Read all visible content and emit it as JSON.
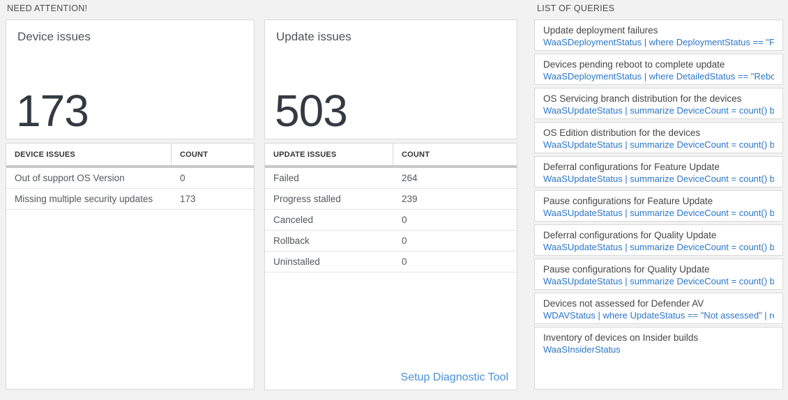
{
  "need_attention": {
    "section_label": "NEED ATTENTION!",
    "device_card": {
      "title": "Device issues",
      "count": "173",
      "table": {
        "columns": [
          "DEVICE ISSUES",
          "COUNT"
        ],
        "rows": [
          [
            "Out of support OS Version",
            "0"
          ],
          [
            "Missing multiple security updates",
            "173"
          ]
        ]
      }
    },
    "update_card": {
      "title": "Update issues",
      "count": "503",
      "table": {
        "columns": [
          "UPDATE ISSUES",
          "COUNT"
        ],
        "rows": [
          [
            "Failed",
            "264"
          ],
          [
            "Progress stalled",
            "239"
          ],
          [
            "Canceled",
            "0"
          ],
          [
            "Rollback",
            "0"
          ],
          [
            "Uninstalled",
            "0"
          ]
        ]
      },
      "footer_link": "Setup Diagnostic Tool"
    }
  },
  "queries": {
    "section_label": "LIST OF QUERIES",
    "items": [
      {
        "title": "Update deployment failures",
        "query": "WaaSDeploymentStatus | where DeploymentStatus == \"Failed\" |..."
      },
      {
        "title": "Devices pending reboot to complete update",
        "query": "WaaSDeploymentStatus | where DetailedStatus == \"Reboot pend..."
      },
      {
        "title": "OS Servicing branch distribution for the devices",
        "query": "WaaSUpdateStatus | summarize DeviceCount = count() by OSSer..."
      },
      {
        "title": "OS Edition distribution for the devices",
        "query": "WaaSUpdateStatus | summarize DeviceCount = count() by OSEdit..."
      },
      {
        "title": "Deferral configurations for Feature Update",
        "query": "WaaSUpdateStatus | summarize DeviceCount = count() by Featur..."
      },
      {
        "title": "Pause configurations for Feature Update",
        "query": "WaaSUpdateStatus | summarize DeviceCount = count() by Featur..."
      },
      {
        "title": "Deferral configurations for Quality Update",
        "query": "WaaSUpdateStatus | summarize DeviceCount = count() by Qualit..."
      },
      {
        "title": "Pause configurations for Quality Update",
        "query": "WaaSUpdateStatus | summarize DeviceCount = count() by Qualit..."
      },
      {
        "title": "Devices not assessed for Defender AV",
        "query": "WDAVStatus | where UpdateStatus == \"Not assessed\" | render ta..."
      },
      {
        "title": "Inventory of devices on Insider builds",
        "query": "WaaSInsiderStatus"
      }
    ]
  },
  "colors": {
    "background": "#f2f2f2",
    "card_border": "#d9d9d9",
    "big_number": "#333a42",
    "link_blue": "#4a90d9",
    "query_blue": "#2b76c7",
    "thick_divider": "#c8c8c8"
  }
}
